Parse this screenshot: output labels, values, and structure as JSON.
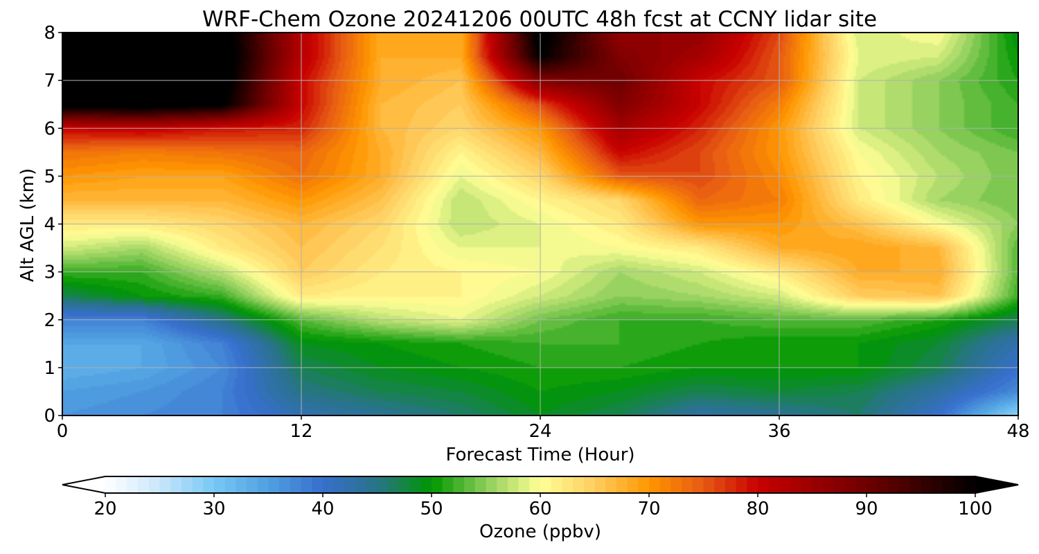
{
  "chart_data": {
    "type": "heatmap",
    "title": "WRF-Chem Ozone  20241206 00UTC 48h fcst at CCNY lidar site",
    "xlabel": "Forecast Time (Hour)",
    "ylabel": "Alt AGL (km)",
    "xlim": [
      0,
      48
    ],
    "ylim": [
      0,
      8
    ],
    "xticks": [
      0,
      12,
      24,
      36,
      48
    ],
    "yticks": [
      0,
      1,
      2,
      3,
      4,
      5,
      6,
      7,
      8
    ],
    "grid": true,
    "colorbar": {
      "label": "Ozone  (ppbv)",
      "min": 20,
      "max": 100,
      "ticks": [
        20,
        30,
        40,
        50,
        60,
        70,
        80,
        90,
        100
      ],
      "extend": "both"
    },
    "x": [
      0,
      4,
      8,
      12,
      16,
      20,
      24,
      28,
      32,
      36,
      40,
      44,
      48
    ],
    "y": [
      0,
      0.5,
      1,
      1.5,
      2,
      2.5,
      3,
      3.5,
      4,
      4.5,
      5,
      5.5,
      6,
      6.5,
      7,
      7.5,
      8
    ],
    "z": [
      [
        36,
        37,
        38,
        42,
        44,
        46,
        49,
        47,
        43,
        44,
        46,
        40,
        28
      ],
      [
        35,
        36,
        38,
        45,
        47,
        48,
        50,
        49,
        47,
        48,
        47,
        43,
        37
      ],
      [
        33,
        34,
        37,
        47,
        49,
        50,
        51,
        51,
        50,
        50,
        50,
        47,
        40
      ],
      [
        34,
        34,
        38,
        49,
        50,
        51,
        52,
        52,
        51,
        50,
        50,
        48,
        42
      ],
      [
        38,
        38,
        45,
        53,
        57,
        59,
        54,
        52,
        52,
        53,
        53,
        51,
        47
      ],
      [
        47,
        50,
        52,
        62,
        61,
        61,
        58,
        55,
        56,
        58,
        65,
        66,
        52
      ],
      [
        52,
        52,
        57,
        65,
        62,
        61,
        60,
        56,
        58,
        62,
        68,
        68,
        53
      ],
      [
        58,
        56,
        62,
        66,
        63,
        59,
        59,
        60,
        62,
        68,
        69,
        67,
        53
      ],
      [
        62,
        62,
        64,
        67,
        64,
        57,
        59,
        62,
        70,
        70,
        66,
        60,
        55
      ],
      [
        67,
        67,
        67,
        70,
        66,
        57,
        61,
        64,
        74,
        72,
        62,
        56,
        54
      ],
      [
        70,
        69,
        69,
        73,
        68,
        59,
        64,
        75,
        76,
        71,
        61,
        57,
        54
      ],
      [
        73,
        72,
        73,
        74,
        68,
        61,
        67,
        80,
        76,
        70,
        60,
        56,
        54
      ],
      [
        80,
        81,
        79,
        78,
        67,
        64,
        70,
        84,
        78,
        70,
        58,
        55,
        52
      ],
      [
        102,
        103,
        101,
        80,
        67,
        65,
        76,
        88,
        80,
        72,
        58,
        55,
        52
      ],
      [
        104,
        104,
        103,
        80,
        68,
        66,
        88,
        90,
        80,
        75,
        58,
        55,
        51
      ],
      [
        104,
        104,
        104,
        82,
        68,
        68,
        100,
        88,
        84,
        75,
        59,
        58,
        50
      ],
      [
        104,
        104,
        103,
        82,
        68,
        68,
        102,
        86,
        86,
        76,
        58,
        60,
        49
      ]
    ]
  }
}
